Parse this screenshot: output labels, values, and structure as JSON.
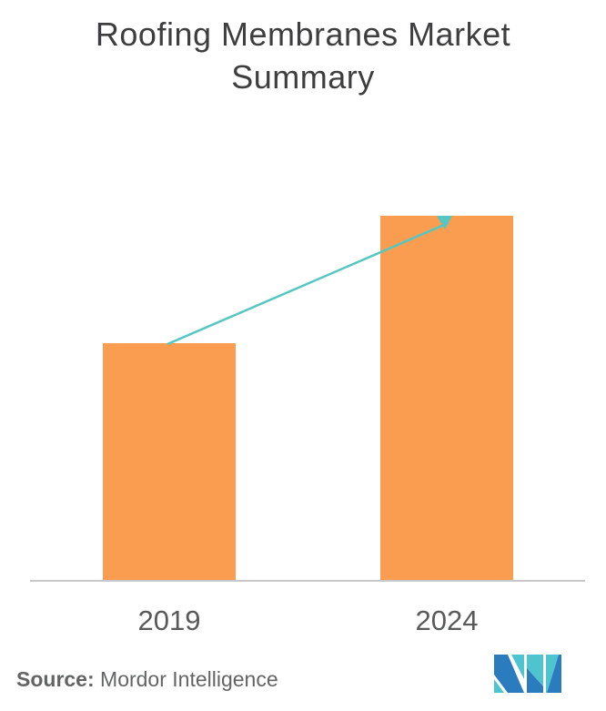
{
  "title": "Roofing Membranes Market Summary",
  "chart_data": {
    "type": "bar",
    "title": "Roofing Membranes Market Summary",
    "categories": [
      "2019",
      "2024"
    ],
    "values": [
      65,
      100
    ],
    "note": "No value axis is shown; values are relative bar heights (2024 bar is about 1.54x the 2019 bar)",
    "xlabel": "",
    "ylabel": "",
    "ylim": [
      0,
      100
    ],
    "grid": false,
    "legend": false,
    "annotations": [
      {
        "type": "trend-arrow",
        "from": "2019",
        "to": "2024",
        "direction": "up"
      }
    ]
  },
  "source": {
    "label": "Source:",
    "text": " Mordor Intelligence"
  },
  "logo": {
    "name": "mordor-intelligence-logo"
  },
  "colors": {
    "title-color": "#3E3E40",
    "bar-color": "#FA9D50",
    "arrow-color": "#55C7C2",
    "axis-color": "#C8C8C8",
    "year-color": "#58595B",
    "source-color": "#636466",
    "logo-teal": "#4EC4CF",
    "logo-blue": "#2B7BBF"
  }
}
